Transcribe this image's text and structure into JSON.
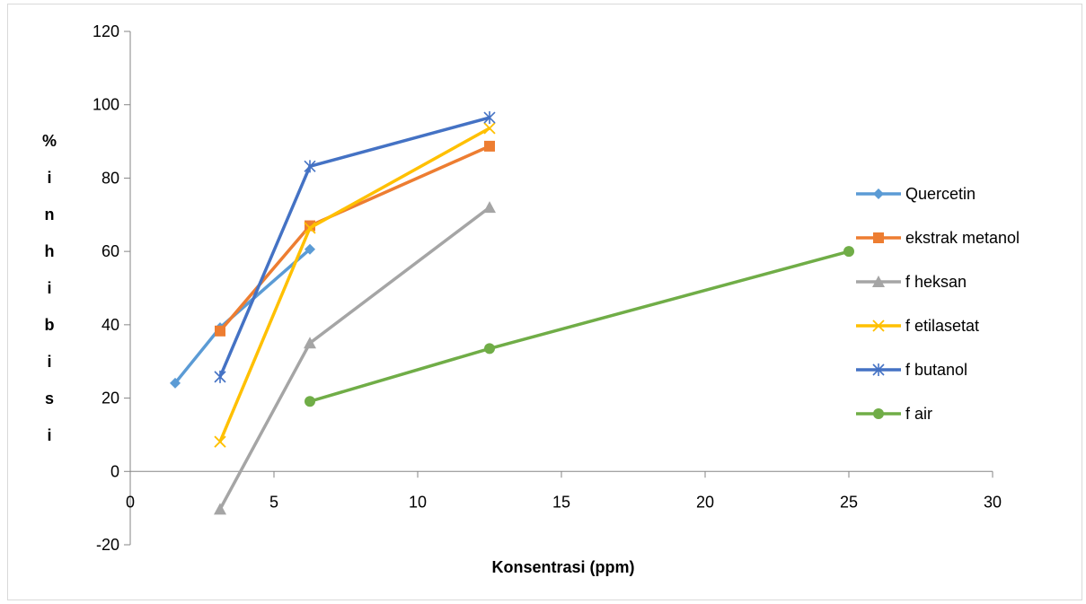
{
  "chart_data": {
    "type": "line",
    "title": "",
    "xlabel": "Konsentrasi (ppm)",
    "ylabel": "% inhibisi",
    "xlim": [
      0,
      30
    ],
    "ylim": [
      -20,
      120
    ],
    "x_ticks": [
      0,
      5,
      10,
      15,
      20,
      25,
      30
    ],
    "y_ticks": [
      -20,
      0,
      20,
      40,
      60,
      80,
      100,
      120
    ],
    "grid": false,
    "legend_position": "right",
    "series": [
      {
        "name": "Quercetin",
        "color": "#5B9BD5",
        "marker": "diamond",
        "x": [
          1.5625,
          3.125,
          6.25
        ],
        "y": [
          24.1,
          39.2,
          60.6
        ]
      },
      {
        "name": "ekstrak metanol",
        "color": "#ED7D31",
        "marker": "square",
        "x": [
          3.125,
          6.25,
          12.5
        ],
        "y": [
          38.3,
          67.0,
          88.7
        ]
      },
      {
        "name": "f heksan",
        "color": "#A5A5A5",
        "marker": "triangle",
        "x": [
          3.125,
          6.25,
          12.5
        ],
        "y": [
          -10.3,
          35.0,
          72.0
        ]
      },
      {
        "name": "f etilasetat",
        "color": "#FFC000",
        "marker": "x",
        "x": [
          3.125,
          6.25,
          12.5
        ],
        "y": [
          8.1,
          66.4,
          93.6
        ]
      },
      {
        "name": "f butanol",
        "color": "#4472C4",
        "marker": "star",
        "x": [
          3.125,
          6.25,
          12.5
        ],
        "y": [
          25.8,
          83.2,
          96.5
        ]
      },
      {
        "name": "f air",
        "color": "#70AD47",
        "marker": "circle",
        "x": [
          6.25,
          12.5,
          25
        ],
        "y": [
          19.1,
          33.5,
          60.0
        ]
      }
    ]
  }
}
